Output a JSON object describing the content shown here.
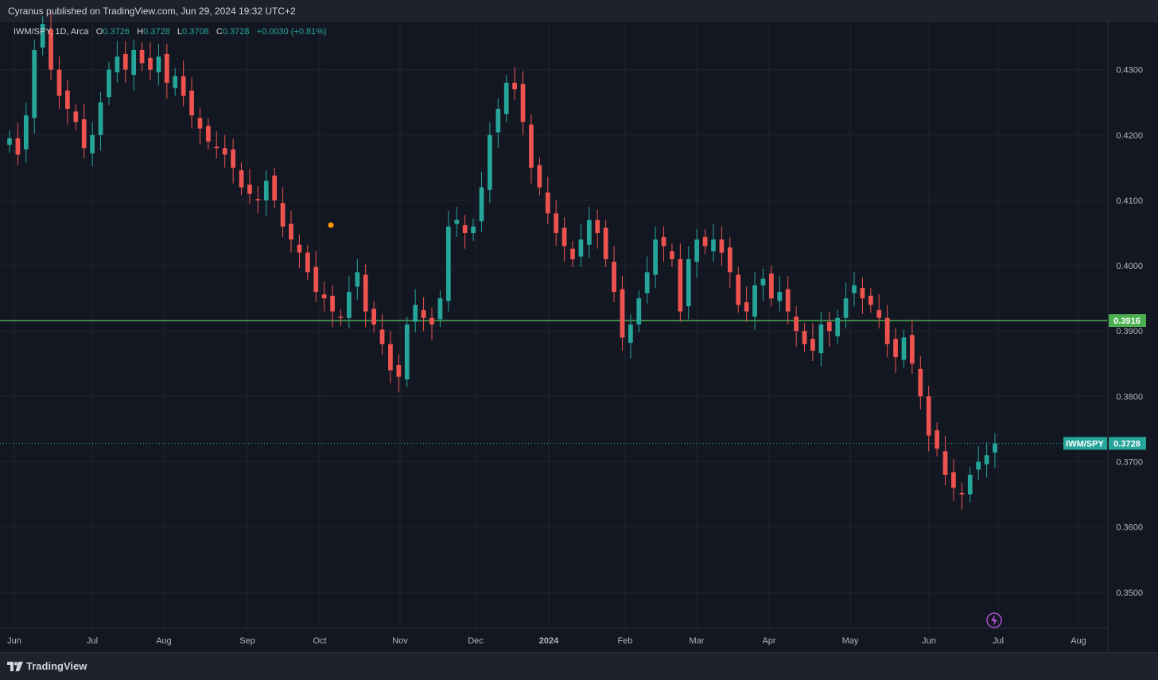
{
  "header": {
    "published": "Cyranus published on TradingView.com, Jun 29, 2024 19:32 UTC+2"
  },
  "legend": {
    "symbol": "IWM/SPY, 1D, Arca",
    "o_label": "O",
    "o_value": "0.3726",
    "h_label": "H",
    "h_value": "0.3728",
    "l_label": "L",
    "l_value": "0.3708",
    "c_label": "C",
    "c_value": "0.3728",
    "change": "+0.0030 (+0.81%)"
  },
  "footer": {
    "brand": "TradingView"
  },
  "colors": {
    "background": "#131722",
    "up": "#26a69a",
    "down": "#ef5350",
    "horizontal_line": "#4caf50",
    "grid": "#1f2430"
  },
  "chart_data": {
    "type": "candlestick",
    "symbol": "IWM/SPY",
    "interval": "1D",
    "exchange": "Arca",
    "x_labels": [
      "Jun",
      "Jul",
      "Aug",
      "Sep",
      "Oct",
      "Nov",
      "Dec",
      "2024",
      "Feb",
      "Mar",
      "Apr",
      "May",
      "Jun",
      "Jul",
      "Aug"
    ],
    "y_ticks": [
      0.35,
      0.36,
      0.37,
      0.38,
      0.39,
      0.4,
      0.41,
      0.42,
      0.43
    ],
    "ylim": [
      0.3445,
      0.4375
    ],
    "horizontal_line": {
      "value": 0.3916,
      "label": "0.3916"
    },
    "last_price": {
      "value": 0.3728,
      "label": "0.3728",
      "symbol_tag": "IWM/SPY"
    },
    "date_range": [
      "2023-06-01",
      "2024-06-28"
    ],
    "approx_closes": [
      0.4195,
      0.417,
      0.423,
      0.433,
      0.437,
      0.43,
      0.426,
      0.424,
      0.422,
      0.418,
      0.42,
      0.425,
      0.43,
      0.432,
      0.43,
      0.433,
      0.431,
      0.43,
      0.432,
      0.428,
      0.429,
      0.426,
      0.423,
      0.421,
      0.419,
      0.418,
      0.417,
      0.415,
      0.412,
      0.411,
      0.41,
      0.413,
      0.41,
      0.406,
      0.404,
      0.402,
      0.399,
      0.396,
      0.395,
      0.393,
      0.392,
      0.396,
      0.399,
      0.393,
      0.391,
      0.388,
      0.384,
      0.383,
      0.391,
      0.394,
      0.392,
      0.391,
      0.395,
      0.406,
      0.407,
      0.405,
      0.406,
      0.412,
      0.42,
      0.424,
      0.428,
      0.427,
      0.422,
      0.415,
      0.412,
      0.408,
      0.405,
      0.403,
      0.401,
      0.404,
      0.407,
      0.405,
      0.401,
      0.396,
      0.389,
      0.391,
      0.395,
      0.399,
      0.404,
      0.403,
      0.401,
      0.393,
      0.401,
      0.404,
      0.403,
      0.404,
      0.402,
      0.399,
      0.394,
      0.393,
      0.397,
      0.398,
      0.395,
      0.396,
      0.393,
      0.39,
      0.388,
      0.387,
      0.391,
      0.39,
      0.392,
      0.395,
      0.397,
      0.395,
      0.394,
      0.392,
      0.388,
      0.386,
      0.389,
      0.385,
      0.38,
      0.374,
      0.372,
      0.368,
      0.366,
      0.365,
      0.368,
      0.37,
      0.371,
      0.3728
    ]
  }
}
